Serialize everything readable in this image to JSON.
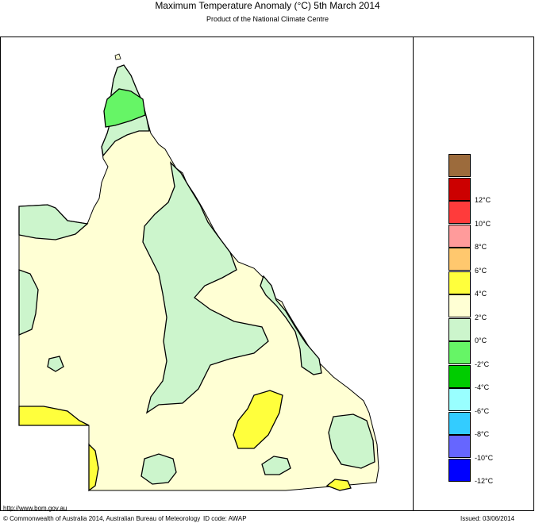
{
  "header": {
    "title": "Maximum Temperature Anomaly (°C)  5th March 2014",
    "subtitle": "Product of the National Climate Centre"
  },
  "legend": {
    "swatches": [
      {
        "color": "#9C6B3C"
      },
      {
        "color": "#CC0000",
        "label": "12°C"
      },
      {
        "color": "#FF3B3B",
        "label": "10°C"
      },
      {
        "color": "#FF9B9B",
        "label": "8°C"
      },
      {
        "color": "#FFC86E",
        "label": "6°C"
      },
      {
        "color": "#FFFF3C",
        "label": "4°C"
      },
      {
        "color": "#FFFFD4",
        "label": "2°C"
      },
      {
        "color": "#CCF5CC",
        "label": "0°C"
      },
      {
        "color": "#66F566",
        "label": "-2°C"
      },
      {
        "color": "#00CC00",
        "label": "-4°C"
      },
      {
        "color": "#99FFFF",
        "label": "-6°C"
      },
      {
        "color": "#33CCFF",
        "label": "-8°C"
      },
      {
        "color": "#6666FF",
        "label": "-10°C"
      },
      {
        "color": "#0000FF",
        "label": "-12°C"
      }
    ]
  },
  "map": {
    "region": "Queensland",
    "colors": {
      "cream": "#FFFFD4",
      "light_green": "#CCF5CC",
      "green": "#66F566",
      "yellow": "#FFFF3C"
    }
  },
  "footer": {
    "url": "http://www.bom.gov.au",
    "copyright": "© Commonwealth of Australia 2014, Australian Bureau of Meteorology",
    "id_code": "ID code: AWAP",
    "issued": "Issued: 03/06/2014"
  }
}
